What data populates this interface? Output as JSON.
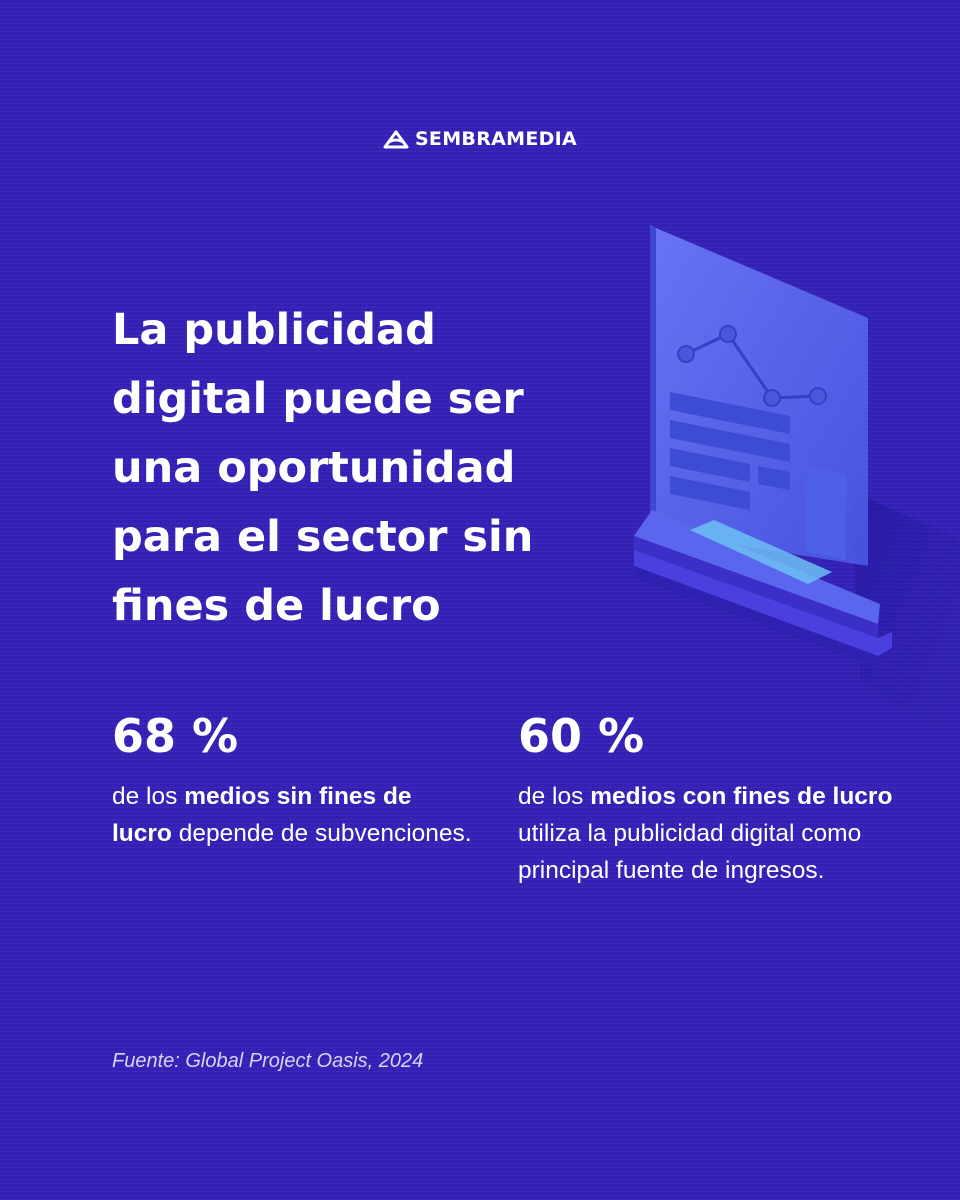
{
  "brand": {
    "name": "SEMBRAMEDIA",
    "logo_icon": "sembramedia-logo-icon"
  },
  "headline": {
    "lines": [
      "La publicidad",
      "digital puede ser",
      "una oportunidad",
      "para el sector sin",
      "fines de lucro"
    ]
  },
  "illustration": {
    "icon": "monitor-chart-illustration",
    "colors": {
      "panel": "#5a6af0",
      "accent": "#6cc0f5",
      "base": "#4a40e0"
    }
  },
  "stats": [
    {
      "value": "68 %",
      "text_before": "de los ",
      "text_bold": "medios sin fines de lucro",
      "text_after": " depende de subvenciones."
    },
    {
      "value": "60 %",
      "text_before": "de los ",
      "text_bold": "medios con fines de lucro",
      "text_after": " utiliza la publicidad digital como principal fuente de ingresos."
    }
  ],
  "source": "Fuente: Global Project Oasis, 2024",
  "colors": {
    "background": "#3422b8",
    "text": "#ffffff"
  }
}
